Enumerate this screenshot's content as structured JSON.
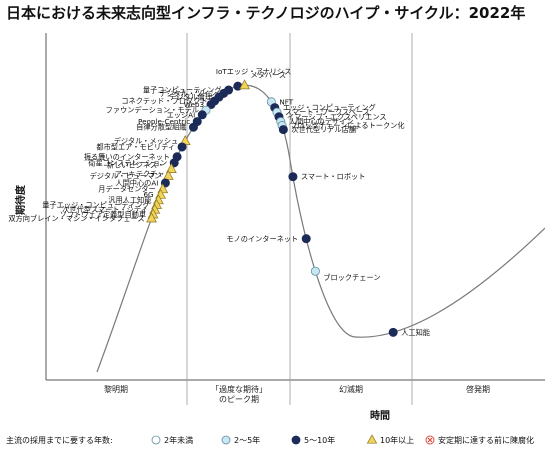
{
  "chart_data": {
    "type": "scatter",
    "title": "日本における未来志向型インフラ・テクノロジのハイプ・サイクル：2022年",
    "ylabel": "期待度",
    "xlabel": "時間",
    "phases": [
      "黎明期",
      "「過度な期待」のピーク期",
      "幻滅期",
      "啓発期"
    ],
    "legend": {
      "title": "主流の採用までに要する年数:",
      "items": [
        {
          "key": "lt2",
          "label": "2年未満",
          "marker": "circle",
          "color": "#ffffff"
        },
        {
          "key": "2to5",
          "label": "2～5年",
          "marker": "circle",
          "color": "#c9e7f2"
        },
        {
          "key": "5to10",
          "label": "5～10年",
          "marker": "circle",
          "color": "#1b2a57"
        },
        {
          "key": "gt10",
          "label": "10年以上",
          "marker": "triangle",
          "color": "#f1d35a"
        },
        {
          "key": "obsolete",
          "label": "安定期に達する前に陳腐化",
          "marker": "xcircle",
          "color": "#e04b3c"
        }
      ]
    },
    "points": [
      {
        "label": "IoTエッジ・アナリシス",
        "cat": "5to10",
        "t": 0.385
      },
      {
        "label": "メタバース",
        "cat": "gt10",
        "t": 0.393
      },
      {
        "label": "量子コンピューティング",
        "cat": "5to10",
        "t": 0.373
      },
      {
        "label": "デジタル・ツイン",
        "cat": "5to10",
        "t": 0.366
      },
      {
        "label": "デジタル倫理",
        "cat": "5to10",
        "t": 0.359
      },
      {
        "label": "コネクテッド・プロダクト",
        "cat": "5to10",
        "t": 0.352
      },
      {
        "label": "Web3",
        "cat": "5to10",
        "t": 0.346
      },
      {
        "label": "ファウンデーション・モデル",
        "cat": "2to5",
        "t": 0.337
      },
      {
        "label": "エッジAI",
        "cat": "5to10",
        "t": 0.33
      },
      {
        "label": "People-Centric",
        "cat": "5to10",
        "t": 0.32
      },
      {
        "label": "自律分散型組織",
        "cat": "5to10",
        "t": 0.312
      },
      {
        "label": "デジタル・メッシュ",
        "cat": "gt10",
        "t": 0.293
      },
      {
        "label": "都市型エア・モビリティ",
        "cat": "5to10",
        "t": 0.285
      },
      {
        "label": "振る舞いのインターネット",
        "cat": "5to10",
        "t": 0.272
      },
      {
        "label": "衛星コンステレーション",
        "cat": "5to10",
        "t": 0.264
      },
      {
        "label": "新しいビジネス・アーキテクチャ",
        "cat": "gt10",
        "t": 0.256
      },
      {
        "label": "デジタル・ヒューマン",
        "cat": "gt10",
        "t": 0.247
      },
      {
        "label": "人間中心のAI",
        "cat": "5to10",
        "t": 0.238
      },
      {
        "label": "月データセンター",
        "cat": "gt10",
        "t": 0.23
      },
      {
        "label": "6G",
        "cat": "gt10",
        "t": 0.223
      },
      {
        "label": "汎用人工知能",
        "cat": "gt10",
        "t": 0.216
      },
      {
        "label": "量子エッジ・コンピューティング",
        "cat": "gt10",
        "t": 0.21
      },
      {
        "label": "次世代型スマート・シティ",
        "cat": "gt10",
        "t": 0.204
      },
      {
        "label": "ソフトウェア定義型自動車",
        "cat": "gt10",
        "t": 0.198
      },
      {
        "label": "双方向ブレイン・マシン・インタフェース",
        "cat": "gt10",
        "t": 0.193
      },
      {
        "label": "NFT",
        "cat": "2to5",
        "t": 0.432
      },
      {
        "label": "エッジ・コンピューティング",
        "cat": "5to10",
        "t": 0.44
      },
      {
        "label": "スマート・ワークスペース",
        "cat": "2to5",
        "t": 0.446
      },
      {
        "label": "イマーシブ・エクスペリエンス",
        "cat": "5to10",
        "t": 0.452
      },
      {
        "label": "人間中心のデザイン",
        "cat": "2to5",
        "t": 0.458
      },
      {
        "label": "ブロックチェーンによるトークン化",
        "cat": "2to5",
        "t": 0.463
      },
      {
        "label": "次世代型リアル店舗",
        "cat": "5to10",
        "t": 0.468
      },
      {
        "label": "スマート・ロボット",
        "cat": "5to10",
        "t": 0.525
      },
      {
        "label": "モノのインターネット",
        "cat": "5to10",
        "t": 0.6
      },
      {
        "label": "ブロックチェーン",
        "cat": "2to5",
        "t": 0.64
      },
      {
        "label": "人工知能",
        "cat": "5to10",
        "t": 0.78
      }
    ]
  }
}
